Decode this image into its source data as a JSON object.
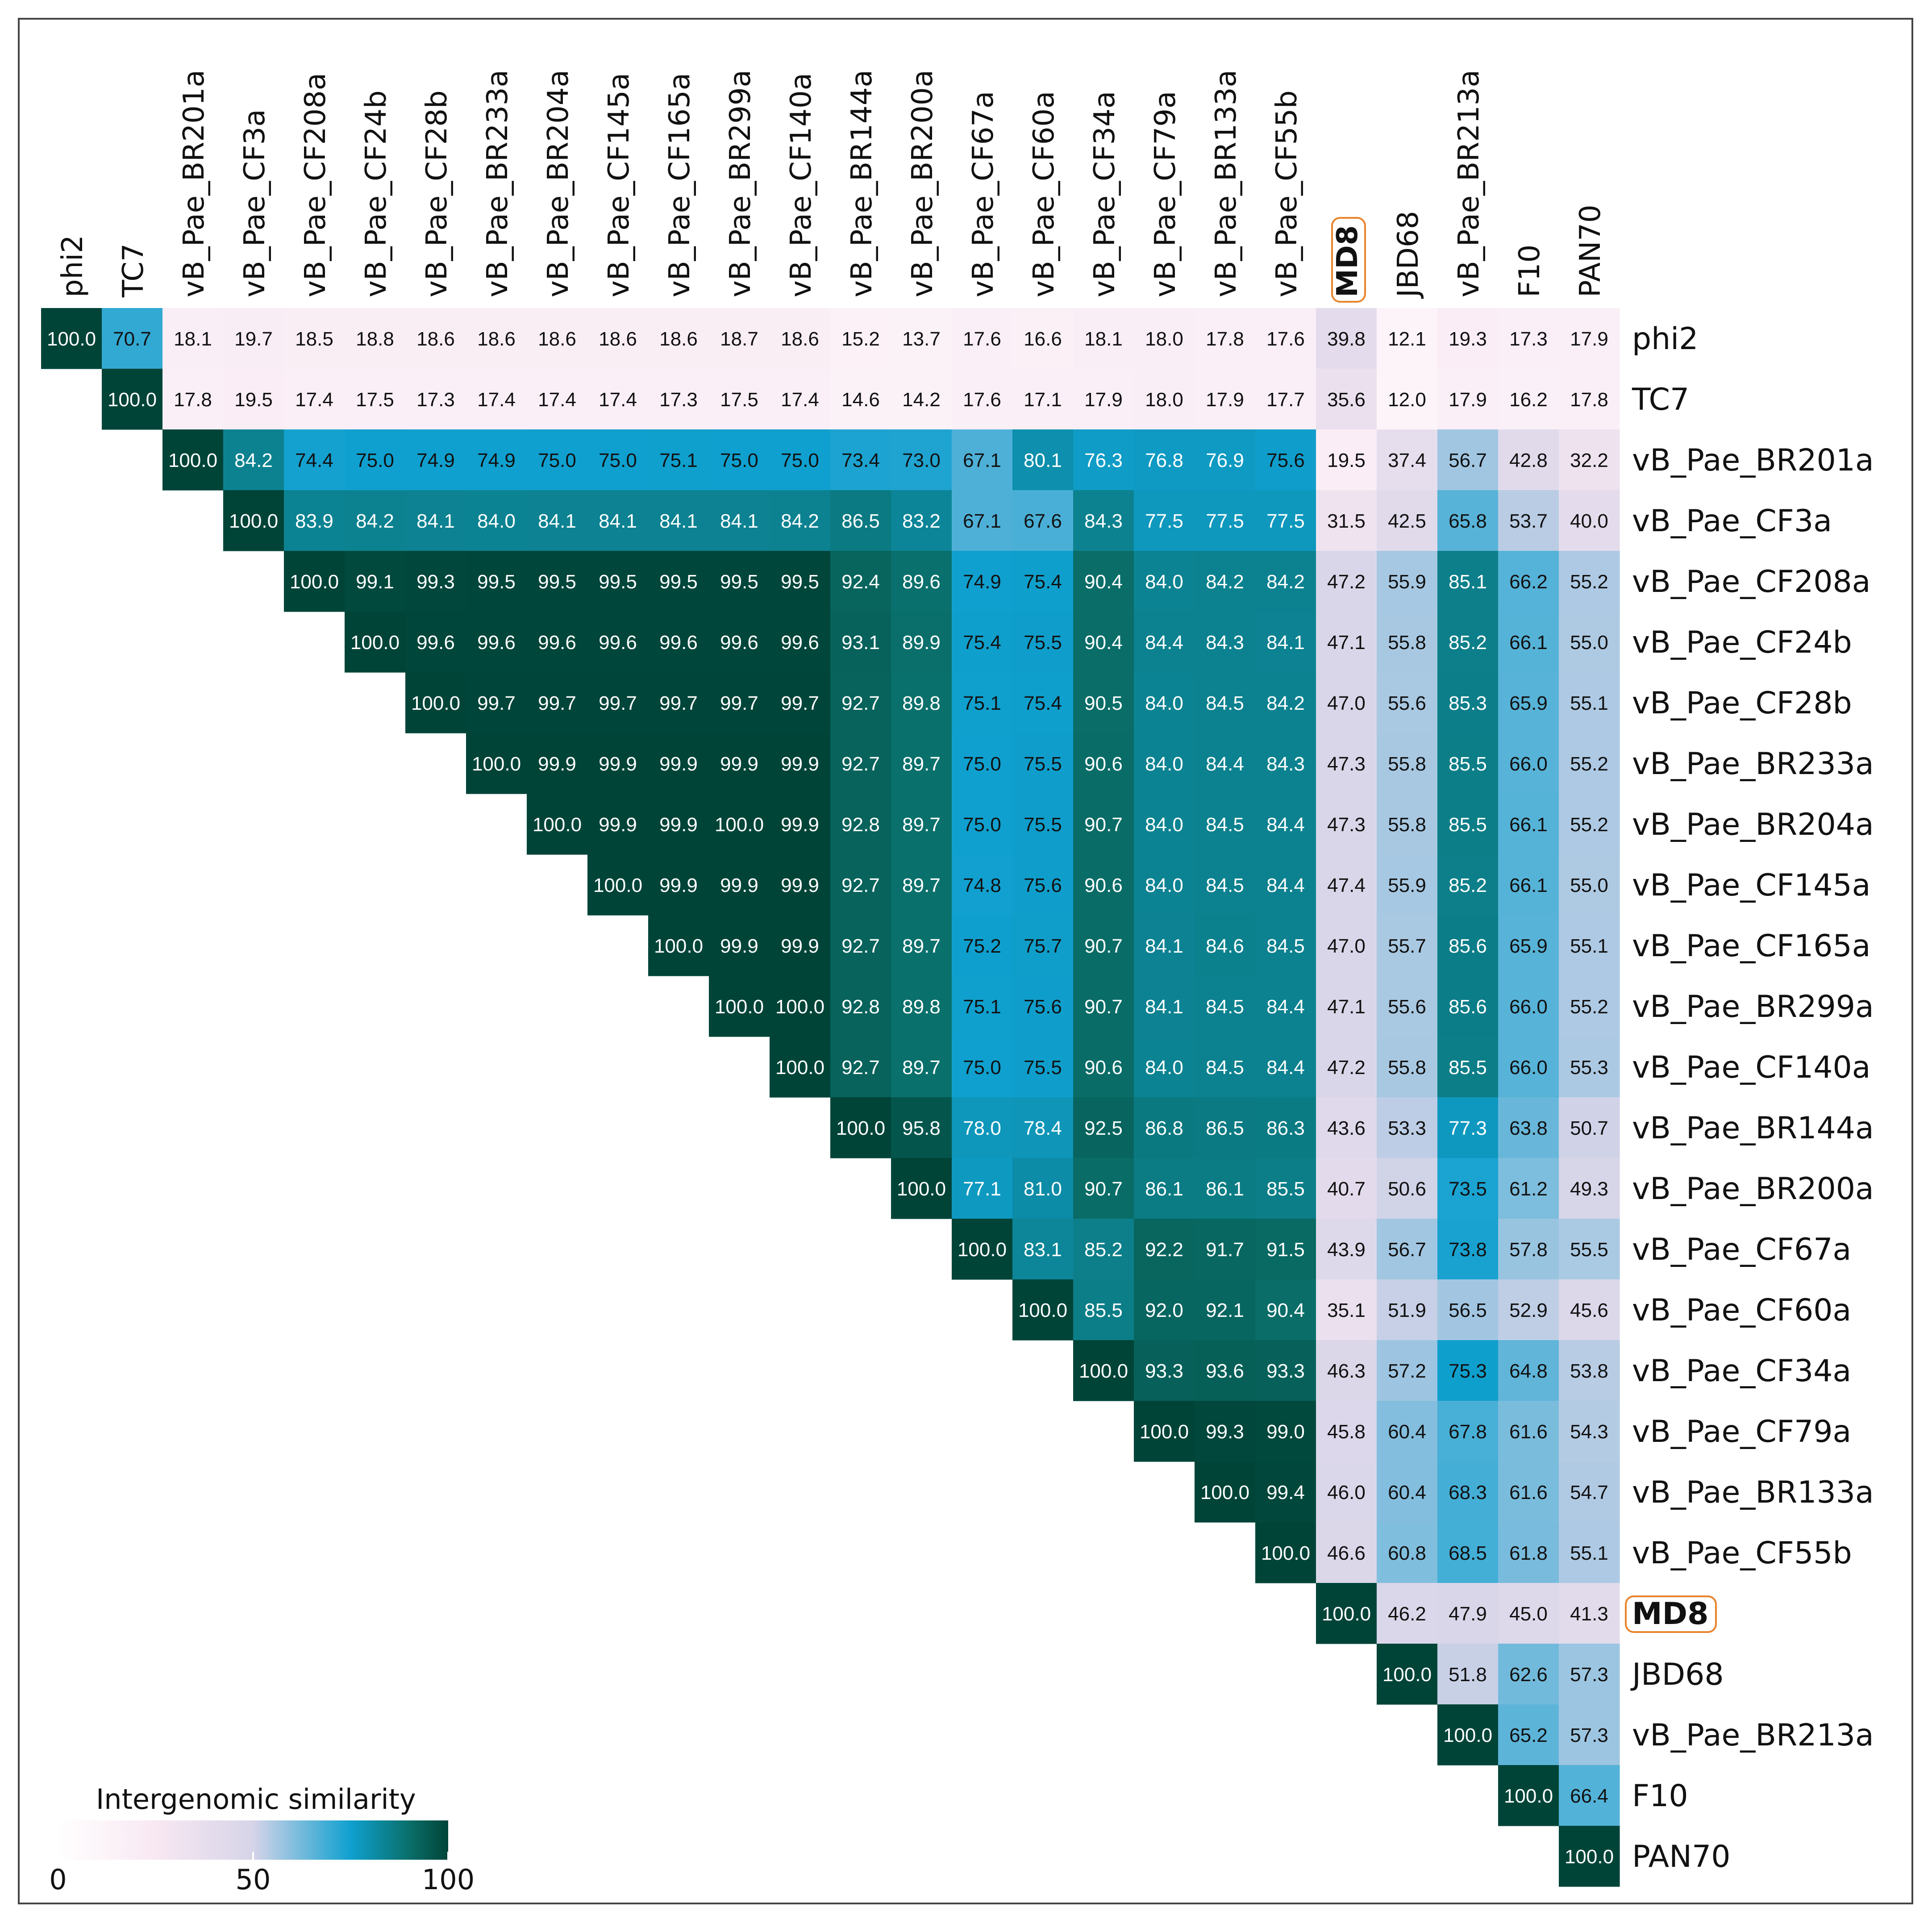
{
  "chart_data": {
    "type": "heatmap",
    "title": "",
    "labels": [
      "phi2",
      "TC7",
      "vB_Pae_BR201a",
      "vB_Pae_CF3a",
      "vB_Pae_CF208a",
      "vB_Pae_CF24b",
      "vB_Pae_CF28b",
      "vB_Pae_BR233a",
      "vB_Pae_BR204a",
      "vB_Pae_CF145a",
      "vB_Pae_CF165a",
      "vB_Pae_BR299a",
      "vB_Pae_CF140a",
      "vB_Pae_BR144a",
      "vB_Pae_BR200a",
      "vB_Pae_CF67a",
      "vB_Pae_CF60a",
      "vB_Pae_CF34a",
      "vB_Pae_CF79a",
      "vB_Pae_BR133a",
      "vB_Pae_CF55b",
      "MD8",
      "JBD68",
      "vB_Pae_BR213a",
      "F10",
      "PAN70"
    ],
    "highlighted_label": "MD8",
    "matrix_upper_rows": [
      [
        100.0,
        70.7,
        18.1,
        19.7,
        18.5,
        18.8,
        18.6,
        18.6,
        18.6,
        18.6,
        18.6,
        18.7,
        18.6,
        15.2,
        13.7,
        17.6,
        16.6,
        18.1,
        18.0,
        17.8,
        17.6,
        39.8,
        12.1,
        19.3,
        17.3,
        17.9
      ],
      [
        100.0,
        17.8,
        19.5,
        17.4,
        17.5,
        17.3,
        17.4,
        17.4,
        17.4,
        17.3,
        17.5,
        17.4,
        14.6,
        14.2,
        17.6,
        17.1,
        17.9,
        18.0,
        17.9,
        17.7,
        35.6,
        12.0,
        17.9,
        16.2,
        17.8
      ],
      [
        100.0,
        84.2,
        74.4,
        75.0,
        74.9,
        74.9,
        75.0,
        75.0,
        75.1,
        75.0,
        75.0,
        73.4,
        73.0,
        67.1,
        80.1,
        76.3,
        76.8,
        76.9,
        75.6,
        19.5,
        37.4,
        56.7,
        42.8,
        32.2
      ],
      [
        100.0,
        83.9,
        84.2,
        84.1,
        84.0,
        84.1,
        84.1,
        84.1,
        84.1,
        84.2,
        86.5,
        83.2,
        67.1,
        67.6,
        84.3,
        77.5,
        77.5,
        77.5,
        31.5,
        42.5,
        65.8,
        53.7,
        40.0
      ],
      [
        100.0,
        99.1,
        99.3,
        99.5,
        99.5,
        99.5,
        99.5,
        99.5,
        99.5,
        92.4,
        89.6,
        74.9,
        75.4,
        90.4,
        84.0,
        84.2,
        84.2,
        47.2,
        55.9,
        85.1,
        66.2,
        55.2
      ],
      [
        100.0,
        99.6,
        99.6,
        99.6,
        99.6,
        99.6,
        99.6,
        99.6,
        93.1,
        89.9,
        75.4,
        75.5,
        90.4,
        84.4,
        84.3,
        84.1,
        47.1,
        55.8,
        85.2,
        66.1,
        55.0
      ],
      [
        100.0,
        99.7,
        99.7,
        99.7,
        99.7,
        99.7,
        99.7,
        92.7,
        89.8,
        75.1,
        75.4,
        90.5,
        84.0,
        84.5,
        84.2,
        47.0,
        55.6,
        85.3,
        65.9,
        55.1
      ],
      [
        100.0,
        99.9,
        99.9,
        99.9,
        99.9,
        99.9,
        92.7,
        89.7,
        75.0,
        75.5,
        90.6,
        84.0,
        84.4,
        84.3,
        47.3,
        55.8,
        85.5,
        66.0,
        55.2
      ],
      [
        100.0,
        99.9,
        99.9,
        100.0,
        99.9,
        92.8,
        89.7,
        75.0,
        75.5,
        90.7,
        84.0,
        84.5,
        84.4,
        47.3,
        55.8,
        85.5,
        66.1,
        55.2
      ],
      [
        100.0,
        99.9,
        99.9,
        99.9,
        92.7,
        89.7,
        74.8,
        75.6,
        90.6,
        84.0,
        84.5,
        84.4,
        47.4,
        55.9,
        85.2,
        66.1,
        55.0
      ],
      [
        100.0,
        99.9,
        99.9,
        92.7,
        89.7,
        75.2,
        75.7,
        90.7,
        84.1,
        84.6,
        84.5,
        47.0,
        55.7,
        85.6,
        65.9,
        55.1
      ],
      [
        100.0,
        100.0,
        92.8,
        89.8,
        75.1,
        75.6,
        90.7,
        84.1,
        84.5,
        84.4,
        47.1,
        55.6,
        85.6,
        66.0,
        55.2
      ],
      [
        100.0,
        92.7,
        89.7,
        75.0,
        75.5,
        90.6,
        84.0,
        84.5,
        84.4,
        47.2,
        55.8,
        85.5,
        66.0,
        55.3
      ],
      [
        100.0,
        95.8,
        78.0,
        78.4,
        92.5,
        86.8,
        86.5,
        86.3,
        43.6,
        53.3,
        77.3,
        63.8,
        50.7
      ],
      [
        100.0,
        77.1,
        81.0,
        90.7,
        86.1,
        86.1,
        85.5,
        40.7,
        50.6,
        73.5,
        61.2,
        49.3
      ],
      [
        100.0,
        83.1,
        85.2,
        92.2,
        91.7,
        91.5,
        43.9,
        56.7,
        73.8,
        57.8,
        55.5
      ],
      [
        100.0,
        85.5,
        92.0,
        92.1,
        90.4,
        35.1,
        51.9,
        56.5,
        52.9,
        45.6
      ],
      [
        100.0,
        93.3,
        93.6,
        93.3,
        46.3,
        57.2,
        75.3,
        64.8,
        53.8
      ],
      [
        100.0,
        99.3,
        99.0,
        45.8,
        60.4,
        67.8,
        61.6,
        54.3
      ],
      [
        100.0,
        99.4,
        46.0,
        60.4,
        68.3,
        61.6,
        54.7
      ],
      [
        100.0,
        46.6,
        60.8,
        68.5,
        61.8,
        55.1
      ],
      [
        100.0,
        46.2,
        47.9,
        45.0,
        41.3
      ],
      [
        100.0,
        51.8,
        62.6,
        57.3
      ],
      [
        100.0,
        65.2,
        57.3
      ],
      [
        100.0,
        66.4
      ],
      [
        100.0
      ]
    ],
    "color_scale": {
      "domain": [
        0,
        25,
        50,
        75,
        90,
        100
      ],
      "colors": [
        "#ffffff",
        "#f8e8f2",
        "#d6d4e8",
        "#0fa0cf",
        "#0a6f6a",
        "#004438"
      ]
    },
    "legend": {
      "title": "Intergenomic similarity",
      "ticks": [
        "0",
        "50",
        "100"
      ],
      "tick_values": [
        0,
        50,
        100
      ],
      "placement": "bottom-left"
    },
    "highlight_color": "#e8842c"
  }
}
